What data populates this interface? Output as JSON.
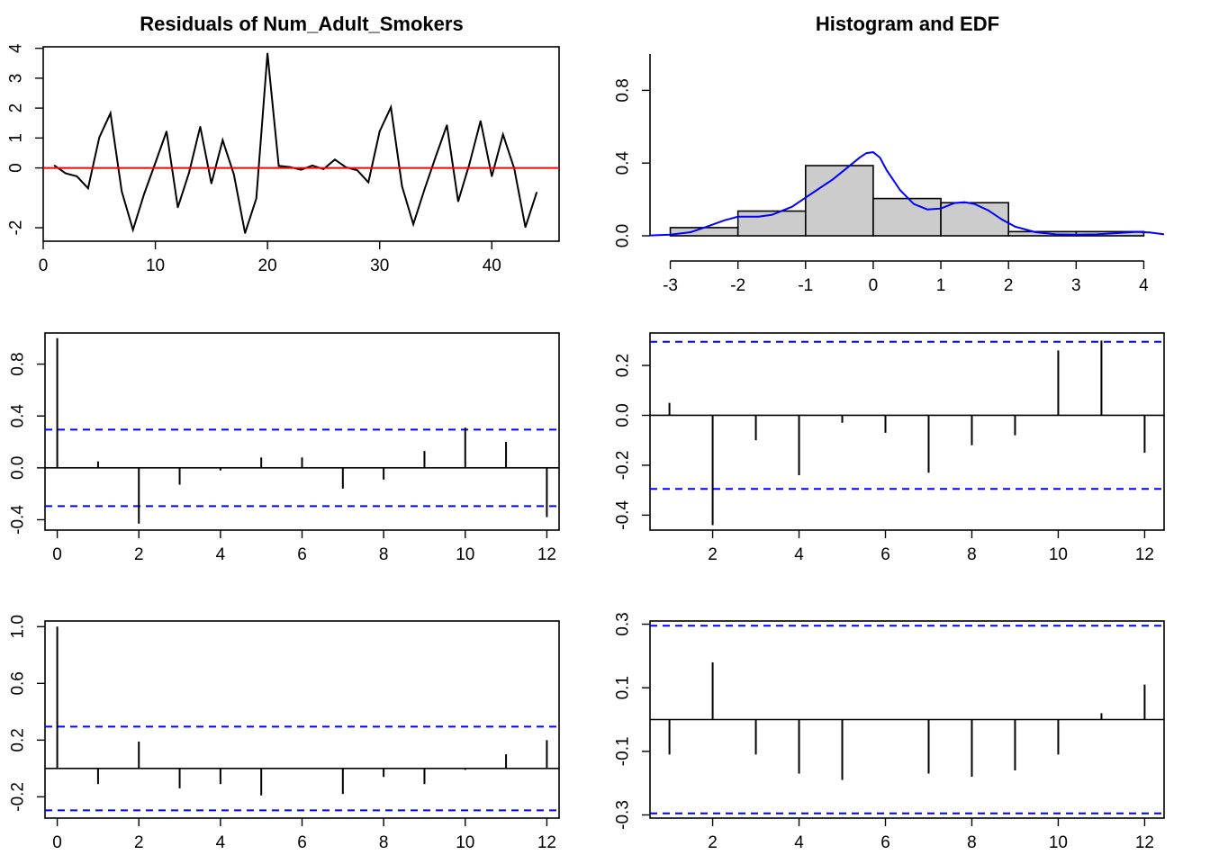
{
  "chart_data": [
    {
      "id": "resid",
      "type": "line",
      "title": "Residuals of Num_Adult_Smokers",
      "xlim": [
        0,
        46
      ],
      "ylim": [
        -2.45,
        4.05
      ],
      "xticks": [
        0,
        10,
        20,
        30,
        40
      ],
      "yticks": [
        -2,
        0,
        1,
        2,
        3,
        4
      ],
      "x": [
        1,
        2,
        3,
        4,
        5,
        6,
        7,
        8,
        9,
        10,
        11,
        12,
        13,
        14,
        15,
        16,
        17,
        18,
        19,
        20,
        21,
        22,
        23,
        24,
        25,
        26,
        27,
        28,
        29,
        30,
        31,
        32,
        33,
        34,
        35,
        36,
        37,
        38,
        39,
        40,
        41,
        42,
        43,
        44
      ],
      "values": [
        0.08,
        -0.18,
        -0.28,
        -0.68,
        1.02,
        1.83,
        -0.78,
        -2.07,
        -0.87,
        0.17,
        1.22,
        -1.32,
        -0.17,
        1.38,
        -0.52,
        0.93,
        -0.22,
        -2.18,
        -1.02,
        3.83,
        0.07,
        0.03,
        -0.06,
        0.08,
        -0.04,
        0.28,
        0.02,
        -0.08,
        -0.48,
        1.22,
        2.03,
        -0.62,
        -1.88,
        -0.72,
        0.38,
        1.43,
        -1.12,
        0.12,
        1.57,
        -0.28,
        1.12,
        -0.02,
        -1.98,
        -0.82
      ],
      "reference_line": 0,
      "colors": {
        "series": "#000000",
        "reference": "#ff0000"
      }
    },
    {
      "id": "hist",
      "type": "bar",
      "title": "Histogram and EDF",
      "xlim": [
        -3.3,
        4.3
      ],
      "ylim": [
        0,
        1.0
      ],
      "xticks": [
        -3,
        -2,
        -1,
        0,
        1,
        2,
        3,
        4
      ],
      "yticks": [
        0.0,
        0.4,
        0.8
      ],
      "bins": [
        [
          -3,
          -2
        ],
        [
          -2,
          -1
        ],
        [
          -1,
          0
        ],
        [
          0,
          1
        ],
        [
          1,
          2
        ],
        [
          2,
          3
        ],
        [
          3,
          4
        ]
      ],
      "values": [
        0.045,
        0.136,
        0.386,
        0.205,
        0.182,
        0.023,
        0.023
      ],
      "density_x": [
        -3.3,
        -3.0,
        -2.7,
        -2.5,
        -2.2,
        -2.0,
        -1.7,
        -1.5,
        -1.2,
        -1.0,
        -0.8,
        -0.6,
        -0.4,
        -0.2,
        -0.1,
        0.0,
        0.1,
        0.2,
        0.4,
        0.6,
        0.8,
        1.0,
        1.2,
        1.35,
        1.5,
        1.7,
        1.9,
        2.1,
        2.4,
        2.7,
        3.0,
        3.3,
        3.6,
        3.9,
        4.1,
        4.3
      ],
      "density_y": [
        0.002,
        0.006,
        0.02,
        0.045,
        0.085,
        0.105,
        0.105,
        0.115,
        0.16,
        0.21,
        0.26,
        0.31,
        0.37,
        0.43,
        0.455,
        0.46,
        0.43,
        0.36,
        0.25,
        0.175,
        0.145,
        0.15,
        0.18,
        0.185,
        0.175,
        0.14,
        0.09,
        0.05,
        0.02,
        0.008,
        0.006,
        0.008,
        0.015,
        0.022,
        0.018,
        0.008
      ],
      "colors": {
        "bars": "#cccccc",
        "density": "#0000ff"
      }
    },
    {
      "id": "acf",
      "type": "bar",
      "xlim": [
        -0.3,
        12.3
      ],
      "ylim": [
        -0.48,
        1.04
      ],
      "xticks": [
        0,
        2,
        4,
        6,
        8,
        10,
        12
      ],
      "yticks": [
        -0.4,
        0.0,
        0.4,
        0.8
      ],
      "lags": [
        0,
        1,
        2,
        3,
        4,
        5,
        6,
        7,
        8,
        9,
        10,
        11,
        12
      ],
      "values": [
        1.0,
        0.05,
        -0.43,
        -0.13,
        -0.02,
        0.08,
        0.08,
        -0.16,
        -0.09,
        0.13,
        0.31,
        0.2,
        -0.38
      ],
      "ci": 0.295,
      "colors": {
        "bars": "#000000",
        "ci": "#0000ff"
      }
    },
    {
      "id": "pacf",
      "type": "bar",
      "xlim": [
        0.55,
        12.45
      ],
      "ylim": [
        -0.46,
        0.33
      ],
      "xticks": [
        2,
        4,
        6,
        8,
        10,
        12
      ],
      "yticks": [
        -0.4,
        -0.2,
        0.0,
        0.2
      ],
      "lags": [
        1,
        2,
        3,
        4,
        5,
        6,
        7,
        8,
        9,
        10,
        11,
        12
      ],
      "values": [
        0.05,
        -0.44,
        -0.1,
        -0.24,
        -0.03,
        -0.07,
        -0.23,
        -0.12,
        -0.08,
        0.26,
        0.3,
        -0.15
      ],
      "ci": 0.295,
      "colors": {
        "bars": "#000000",
        "ci": "#0000ff"
      }
    },
    {
      "id": "acf2",
      "type": "bar",
      "xlim": [
        -0.3,
        12.3
      ],
      "ylim": [
        -0.35,
        1.04
      ],
      "xticks": [
        0,
        2,
        4,
        6,
        8,
        10,
        12
      ],
      "yticks": [
        -0.2,
        0.2,
        0.6,
        1.0
      ],
      "lags": [
        0,
        1,
        2,
        3,
        4,
        5,
        6,
        7,
        8,
        9,
        10,
        11,
        12
      ],
      "values": [
        1.0,
        -0.11,
        0.19,
        -0.14,
        -0.11,
        -0.19,
        0.0,
        -0.18,
        -0.06,
        -0.11,
        -0.01,
        0.1,
        0.2
      ],
      "ci": 0.295,
      "colors": {
        "bars": "#000000",
        "ci": "#0000ff"
      }
    },
    {
      "id": "pacf2",
      "type": "bar",
      "xlim": [
        0.55,
        12.45
      ],
      "ylim": [
        -0.31,
        0.31
      ],
      "xticks": [
        2,
        4,
        6,
        8,
        10,
        12
      ],
      "yticks": [
        -0.3,
        -0.1,
        0.1,
        0.3
      ],
      "lags": [
        1,
        2,
        3,
        4,
        5,
        6,
        7,
        8,
        9,
        10,
        11,
        12
      ],
      "values": [
        -0.11,
        0.18,
        -0.11,
        -0.17,
        -0.19,
        0.0,
        -0.17,
        -0.18,
        -0.16,
        -0.11,
        0.02,
        0.11
      ],
      "ci": 0.295,
      "colors": {
        "bars": "#000000",
        "ci": "#0000ff"
      }
    }
  ]
}
